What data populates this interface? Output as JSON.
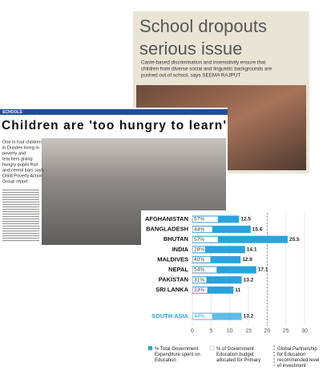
{
  "dropouts": {
    "title_lines": [
      "School dropouts",
      "serious issue"
    ],
    "body_lines": [
      "Caste-based discrimination and insensitivity ensure that",
      "children from diverse social and linguistic backgrounds are",
      "pushed out of school, says SEEMA RAJPUT"
    ]
  },
  "hunger": {
    "section": "SCHOOLS",
    "headline": "Children are 'too hungry to learn'",
    "standfirst_lines": [
      "One in four children",
      "in Dundee living in",
      "poverty and",
      "teachers giving",
      "hungry pupils fruit",
      "and cereal bars says",
      "Child Poverty Action",
      "Group report"
    ]
  },
  "chart_data": {
    "type": "bar",
    "categories": [
      "AFGHANISTAN",
      "BANGLADESH",
      "BHUTAN",
      "INDIA",
      "MALDIVES",
      "NEPAL",
      "PAKISTAN",
      "SRI LANKA",
      "SOUTH ASIA"
    ],
    "series": [
      {
        "name": "% Total Government Expenditure spent on Education",
        "color": "#29a3dd",
        "values": [
          12.5,
          15.6,
          25.5,
          14.1,
          12.9,
          17.1,
          13.2,
          11,
          13.2
        ]
      },
      {
        "name": "% of Government Education budget allocated for Primary",
        "color": "#ffffff",
        "values": [
          57,
          44,
          57,
          28,
          40,
          54,
          31,
          33,
          44
        ],
        "value_labels": [
          "57%",
          "44%",
          "57%",
          "28%",
          "40%",
          "54%",
          "31%",
          "33%",
          "44%"
        ]
      }
    ],
    "xlim": [
      0,
      30
    ],
    "xticks": [
      0,
      5,
      10,
      15,
      20,
      25,
      30
    ],
    "reference": {
      "value": 20,
      "label": "Global Partnership for Education recommended level of investment"
    }
  }
}
